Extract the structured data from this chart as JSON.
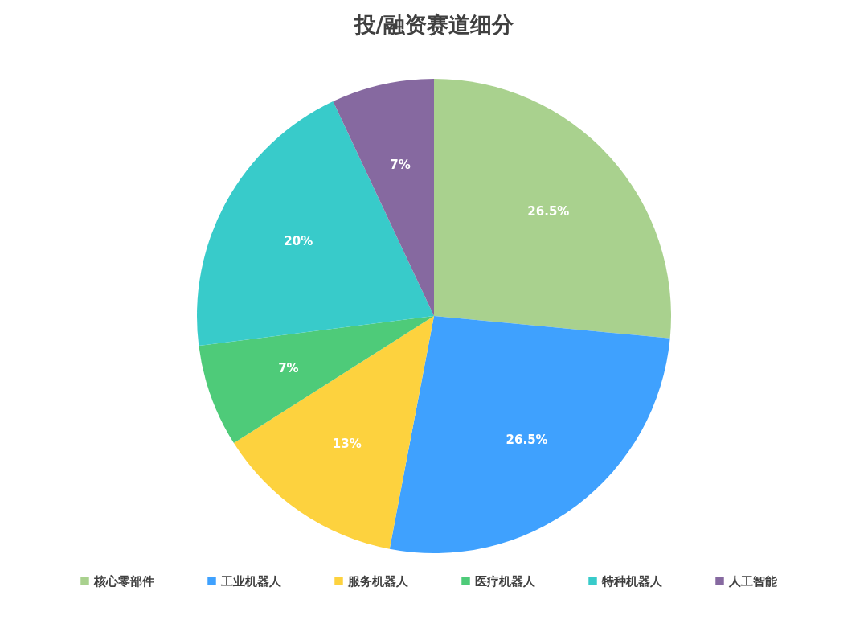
{
  "chart_data": {
    "type": "pie",
    "title": "投/融资赛道细分",
    "categories": [
      "核心零部件",
      "工业机器人",
      "服务机器人",
      "医疗机器人",
      "特种机器人",
      "人工智能"
    ],
    "values": [
      26.5,
      26.5,
      13,
      7,
      20,
      7
    ],
    "colors": [
      "#a9d18e",
      "#3fa1fe",
      "#fdd23e",
      "#4ecb79",
      "#38cbca",
      "#8669a0"
    ],
    "value_labels": [
      "26.5%",
      "26.5%",
      "13%",
      "7%",
      "20%",
      "7%"
    ],
    "legend": "bottom"
  }
}
